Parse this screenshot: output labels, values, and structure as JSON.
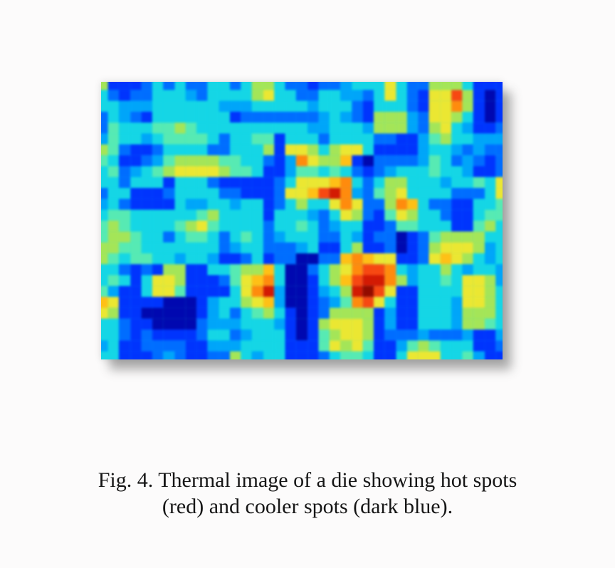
{
  "figure": {
    "label": "Fig. 4.",
    "caption_line1": "Fig. 4. Thermal image of a die showing hot spots",
    "caption_line2": "(red) and cooler spots (dark blue)."
  },
  "colors": {
    "page_background": "#fcfbfb",
    "shadow": "#8a8a8a",
    "hot": "#cc1c06",
    "cool": "#0008a8"
  },
  "chart_data": {
    "type": "heatmap",
    "title": "Thermal image of a die",
    "legend": {
      "hot_spots": "red",
      "cooler_spots": "dark blue"
    },
    "grid": {
      "columns": 37,
      "rows": 26
    },
    "palette_order_cold_to_hot": "abcdefghijklm",
    "palette": {
      "a": "#0008a8",
      "b": "#0034f4",
      "c": "#006cfa",
      "d": "#00a4f4",
      "e": "#1cd4e2",
      "f": "#5ce8b4",
      "g": "#a6e45e",
      "h": "#eae63a",
      "i": "#fcc01e",
      "j": "#fa8c14",
      "k": "#f04a16",
      "l": "#cc1c06",
      "m": "#8e0c00"
    },
    "rows": [
      "gbbbcececceeceggeccbccdeeeheccgggebbb",
      "ecbcceeedceeeegheecceeddcehecbhhkgbab",
      "eedddeeeeeedddeeeeedeeecbeeecbhhjgbab",
      "cedcbeeeeeeebcccccccdedcbgggdchhgebab",
      "cfeeeffgfeeeeeeeeeeddeeedgggdcghedbbc",
      "dfeedeffffeceeffbeeeceeeeccbbdfgeeddd",
      "gfcbbceeeecceeegbhhgeghhebbbbdeedcdcc",
      "febbcdfggggffeecbdjhggibaccccdfecdcbc",
      "efcdefghhhhgffebbdffefecbcdeeefeedbbc",
      "eeceeebeeecbbbbbcehhhijeceggeeedeefeh",
      "ceebbbceeeeccbbbchhikljdcfgheeeeccceh",
      "decbbbbeddeedeebcegeehjhccgjieccbbeef",
      "effeeeeeefgeeeebeeedcehgcbfhgeecbbeff",
      "fgfeeeefghfeeeeceefecdeebbcffeeebbfge",
      "fggfeeceffecefecdeeeccedbccabcfggggee",
      "ggffeeeeeeecdeecccdebbegbbcabcghhhgde",
      "gfeffeedeedbbcebccaaccijihhbbchihgede",
      "eecbcbggbbeefggieaaceghjkkjedeegedeed",
      "efebehhgbbbcfhijeaabegiklljgdeefehhgd",
      "fdbbehhfbbbbehjldaabdeglmkhbbeeeehhge",
      "ihbbbbaaabdeeghidaabcdfjkhebbeeedhhge",
      "hgbbaaaaabdecefgebabcggggbdbbeeedggge",
      "eecbbaaaacdddeeedbabghhhgbdbbeeedggfe",
      "eecbcbbbbceecdeeebabfghhgbcccdcccdbbd",
      "debbccccbbdddeeeebbbfhghfbbdfgfeeebbc",
      "eebbbcdcbbccgedeebbbceffebbehhheefdbb"
    ],
    "hot_spots": [
      {
        "col": 25,
        "row": 20,
        "label": "main hot spot, dark red core"
      },
      {
        "col": 22,
        "row": 11,
        "label": "hot spot with dark red pixel (upper center)"
      },
      {
        "col": 16,
        "row": 20,
        "label": "hot spot (lower left-center)"
      },
      {
        "col": 33,
        "row": 2,
        "label": "small hot spot (top right)"
      },
      {
        "col": 19,
        "row": 8,
        "label": "warm spot (upper center)"
      },
      {
        "col": 23,
        "row": 8,
        "label": "warm spot (upper center)"
      },
      {
        "col": 28,
        "row": 12,
        "label": "warm spot (right center)"
      }
    ],
    "cool_spots": [
      {
        "cols": "5-9",
        "rows": "21-23",
        "label": "coolest navy region (bottom left)"
      },
      {
        "cols": "35-36",
        "rows": "1-5",
        "label": "cool navy block (top right)"
      },
      {
        "cols": "18-19",
        "rows": "17-26",
        "label": "cool vertical band (bottom center)"
      },
      {
        "cols": "4-7",
        "rows": "11-12",
        "label": "cool patch (mid left)"
      }
    ]
  }
}
